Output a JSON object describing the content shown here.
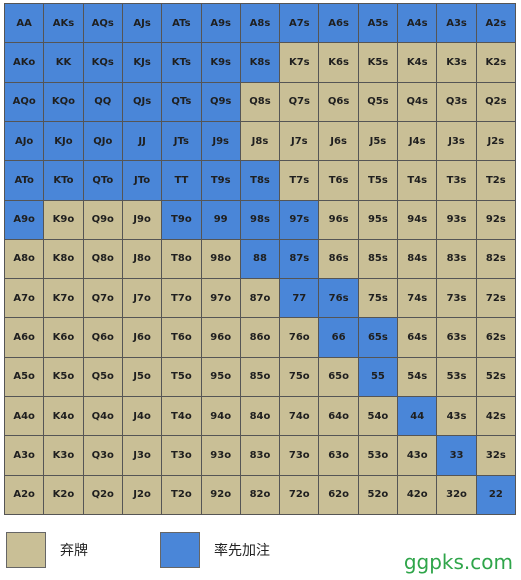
{
  "colors": {
    "raise": "#4a86d8",
    "fold": "#c9bf96",
    "watermark": "#2fa54a"
  },
  "grid": {
    "rows": [
      {
        "cells": [
          {
            "label": "AA",
            "action": "raise"
          },
          {
            "label": "AKs",
            "action": "raise"
          },
          {
            "label": "AQs",
            "action": "raise"
          },
          {
            "label": "AJs",
            "action": "raise"
          },
          {
            "label": "ATs",
            "action": "raise"
          },
          {
            "label": "A9s",
            "action": "raise"
          },
          {
            "label": "A8s",
            "action": "raise"
          },
          {
            "label": "A7s",
            "action": "raise"
          },
          {
            "label": "A6s",
            "action": "raise"
          },
          {
            "label": "A5s",
            "action": "raise"
          },
          {
            "label": "A4s",
            "action": "raise"
          },
          {
            "label": "A3s",
            "action": "raise"
          },
          {
            "label": "A2s",
            "action": "raise"
          }
        ]
      },
      {
        "cells": [
          {
            "label": "AKo",
            "action": "raise"
          },
          {
            "label": "KK",
            "action": "raise"
          },
          {
            "label": "KQs",
            "action": "raise"
          },
          {
            "label": "KJs",
            "action": "raise"
          },
          {
            "label": "KTs",
            "action": "raise"
          },
          {
            "label": "K9s",
            "action": "raise"
          },
          {
            "label": "K8s",
            "action": "raise"
          },
          {
            "label": "K7s",
            "action": "fold"
          },
          {
            "label": "K6s",
            "action": "fold"
          },
          {
            "label": "K5s",
            "action": "fold"
          },
          {
            "label": "K4s",
            "action": "fold"
          },
          {
            "label": "K3s",
            "action": "fold"
          },
          {
            "label": "K2s",
            "action": "fold"
          }
        ]
      },
      {
        "cells": [
          {
            "label": "AQo",
            "action": "raise"
          },
          {
            "label": "KQo",
            "action": "raise"
          },
          {
            "label": "QQ",
            "action": "raise"
          },
          {
            "label": "QJs",
            "action": "raise"
          },
          {
            "label": "QTs",
            "action": "raise"
          },
          {
            "label": "Q9s",
            "action": "raise"
          },
          {
            "label": "Q8s",
            "action": "fold"
          },
          {
            "label": "Q7s",
            "action": "fold"
          },
          {
            "label": "Q6s",
            "action": "fold"
          },
          {
            "label": "Q5s",
            "action": "fold"
          },
          {
            "label": "Q4s",
            "action": "fold"
          },
          {
            "label": "Q3s",
            "action": "fold"
          },
          {
            "label": "Q2s",
            "action": "fold"
          }
        ]
      },
      {
        "cells": [
          {
            "label": "AJo",
            "action": "raise"
          },
          {
            "label": "KJo",
            "action": "raise"
          },
          {
            "label": "QJo",
            "action": "raise"
          },
          {
            "label": "JJ",
            "action": "raise"
          },
          {
            "label": "JTs",
            "action": "raise"
          },
          {
            "label": "J9s",
            "action": "raise"
          },
          {
            "label": "J8s",
            "action": "fold"
          },
          {
            "label": "J7s",
            "action": "fold"
          },
          {
            "label": "J6s",
            "action": "fold"
          },
          {
            "label": "J5s",
            "action": "fold"
          },
          {
            "label": "J4s",
            "action": "fold"
          },
          {
            "label": "J3s",
            "action": "fold"
          },
          {
            "label": "J2s",
            "action": "fold"
          }
        ]
      },
      {
        "cells": [
          {
            "label": "ATo",
            "action": "raise"
          },
          {
            "label": "KTo",
            "action": "raise"
          },
          {
            "label": "QTo",
            "action": "raise"
          },
          {
            "label": "JTo",
            "action": "raise"
          },
          {
            "label": "TT",
            "action": "raise"
          },
          {
            "label": "T9s",
            "action": "raise"
          },
          {
            "label": "T8s",
            "action": "raise"
          },
          {
            "label": "T7s",
            "action": "fold"
          },
          {
            "label": "T6s",
            "action": "fold"
          },
          {
            "label": "T5s",
            "action": "fold"
          },
          {
            "label": "T4s",
            "action": "fold"
          },
          {
            "label": "T3s",
            "action": "fold"
          },
          {
            "label": "T2s",
            "action": "fold"
          }
        ]
      },
      {
        "cells": [
          {
            "label": "A9o",
            "action": "raise"
          },
          {
            "label": "K9o",
            "action": "fold"
          },
          {
            "label": "Q9o",
            "action": "fold"
          },
          {
            "label": "J9o",
            "action": "fold"
          },
          {
            "label": "T9o",
            "action": "raise"
          },
          {
            "label": "99",
            "action": "raise"
          },
          {
            "label": "98s",
            "action": "raise"
          },
          {
            "label": "97s",
            "action": "raise"
          },
          {
            "label": "96s",
            "action": "fold"
          },
          {
            "label": "95s",
            "action": "fold"
          },
          {
            "label": "94s",
            "action": "fold"
          },
          {
            "label": "93s",
            "action": "fold"
          },
          {
            "label": "92s",
            "action": "fold"
          }
        ]
      },
      {
        "cells": [
          {
            "label": "A8o",
            "action": "fold"
          },
          {
            "label": "K8o",
            "action": "fold"
          },
          {
            "label": "Q8o",
            "action": "fold"
          },
          {
            "label": "J8o",
            "action": "fold"
          },
          {
            "label": "T8o",
            "action": "fold"
          },
          {
            "label": "98o",
            "action": "fold"
          },
          {
            "label": "88",
            "action": "raise"
          },
          {
            "label": "87s",
            "action": "raise"
          },
          {
            "label": "86s",
            "action": "fold"
          },
          {
            "label": "85s",
            "action": "fold"
          },
          {
            "label": "84s",
            "action": "fold"
          },
          {
            "label": "83s",
            "action": "fold"
          },
          {
            "label": "82s",
            "action": "fold"
          }
        ]
      },
      {
        "cells": [
          {
            "label": "A7o",
            "action": "fold"
          },
          {
            "label": "K7o",
            "action": "fold"
          },
          {
            "label": "Q7o",
            "action": "fold"
          },
          {
            "label": "J7o",
            "action": "fold"
          },
          {
            "label": "T7o",
            "action": "fold"
          },
          {
            "label": "97o",
            "action": "fold"
          },
          {
            "label": "87o",
            "action": "fold"
          },
          {
            "label": "77",
            "action": "raise"
          },
          {
            "label": "76s",
            "action": "raise"
          },
          {
            "label": "75s",
            "action": "fold"
          },
          {
            "label": "74s",
            "action": "fold"
          },
          {
            "label": "73s",
            "action": "fold"
          },
          {
            "label": "72s",
            "action": "fold"
          }
        ]
      },
      {
        "cells": [
          {
            "label": "A6o",
            "action": "fold"
          },
          {
            "label": "K6o",
            "action": "fold"
          },
          {
            "label": "Q6o",
            "action": "fold"
          },
          {
            "label": "J6o",
            "action": "fold"
          },
          {
            "label": "T6o",
            "action": "fold"
          },
          {
            "label": "96o",
            "action": "fold"
          },
          {
            "label": "86o",
            "action": "fold"
          },
          {
            "label": "76o",
            "action": "fold"
          },
          {
            "label": "66",
            "action": "raise"
          },
          {
            "label": "65s",
            "action": "raise"
          },
          {
            "label": "64s",
            "action": "fold"
          },
          {
            "label": "63s",
            "action": "fold"
          },
          {
            "label": "62s",
            "action": "fold"
          }
        ]
      },
      {
        "cells": [
          {
            "label": "A5o",
            "action": "fold"
          },
          {
            "label": "K5o",
            "action": "fold"
          },
          {
            "label": "Q5o",
            "action": "fold"
          },
          {
            "label": "J5o",
            "action": "fold"
          },
          {
            "label": "T5o",
            "action": "fold"
          },
          {
            "label": "95o",
            "action": "fold"
          },
          {
            "label": "85o",
            "action": "fold"
          },
          {
            "label": "75o",
            "action": "fold"
          },
          {
            "label": "65o",
            "action": "fold"
          },
          {
            "label": "55",
            "action": "raise"
          },
          {
            "label": "54s",
            "action": "fold"
          },
          {
            "label": "53s",
            "action": "fold"
          },
          {
            "label": "52s",
            "action": "fold"
          }
        ]
      },
      {
        "cells": [
          {
            "label": "A4o",
            "action": "fold"
          },
          {
            "label": "K4o",
            "action": "fold"
          },
          {
            "label": "Q4o",
            "action": "fold"
          },
          {
            "label": "J4o",
            "action": "fold"
          },
          {
            "label": "T4o",
            "action": "fold"
          },
          {
            "label": "94o",
            "action": "fold"
          },
          {
            "label": "84o",
            "action": "fold"
          },
          {
            "label": "74o",
            "action": "fold"
          },
          {
            "label": "64o",
            "action": "fold"
          },
          {
            "label": "54o",
            "action": "fold"
          },
          {
            "label": "44",
            "action": "raise"
          },
          {
            "label": "43s",
            "action": "fold"
          },
          {
            "label": "42s",
            "action": "fold"
          }
        ]
      },
      {
        "cells": [
          {
            "label": "A3o",
            "action": "fold"
          },
          {
            "label": "K3o",
            "action": "fold"
          },
          {
            "label": "Q3o",
            "action": "fold"
          },
          {
            "label": "J3o",
            "action": "fold"
          },
          {
            "label": "T3o",
            "action": "fold"
          },
          {
            "label": "93o",
            "action": "fold"
          },
          {
            "label": "83o",
            "action": "fold"
          },
          {
            "label": "73o",
            "action": "fold"
          },
          {
            "label": "63o",
            "action": "fold"
          },
          {
            "label": "53o",
            "action": "fold"
          },
          {
            "label": "43o",
            "action": "fold"
          },
          {
            "label": "33",
            "action": "raise"
          },
          {
            "label": "32s",
            "action": "fold"
          }
        ]
      },
      {
        "cells": [
          {
            "label": "A2o",
            "action": "fold"
          },
          {
            "label": "K2o",
            "action": "fold"
          },
          {
            "label": "Q2o",
            "action": "fold"
          },
          {
            "label": "J2o",
            "action": "fold"
          },
          {
            "label": "T2o",
            "action": "fold"
          },
          {
            "label": "92o",
            "action": "fold"
          },
          {
            "label": "82o",
            "action": "fold"
          },
          {
            "label": "72o",
            "action": "fold"
          },
          {
            "label": "62o",
            "action": "fold"
          },
          {
            "label": "52o",
            "action": "fold"
          },
          {
            "label": "42o",
            "action": "fold"
          },
          {
            "label": "32o",
            "action": "fold"
          },
          {
            "label": "22",
            "action": "raise"
          }
        ]
      }
    ]
  },
  "legend": {
    "fold_label": "弃牌",
    "raise_label": "率先加注"
  },
  "watermark": {
    "text": "ggpks.com"
  }
}
